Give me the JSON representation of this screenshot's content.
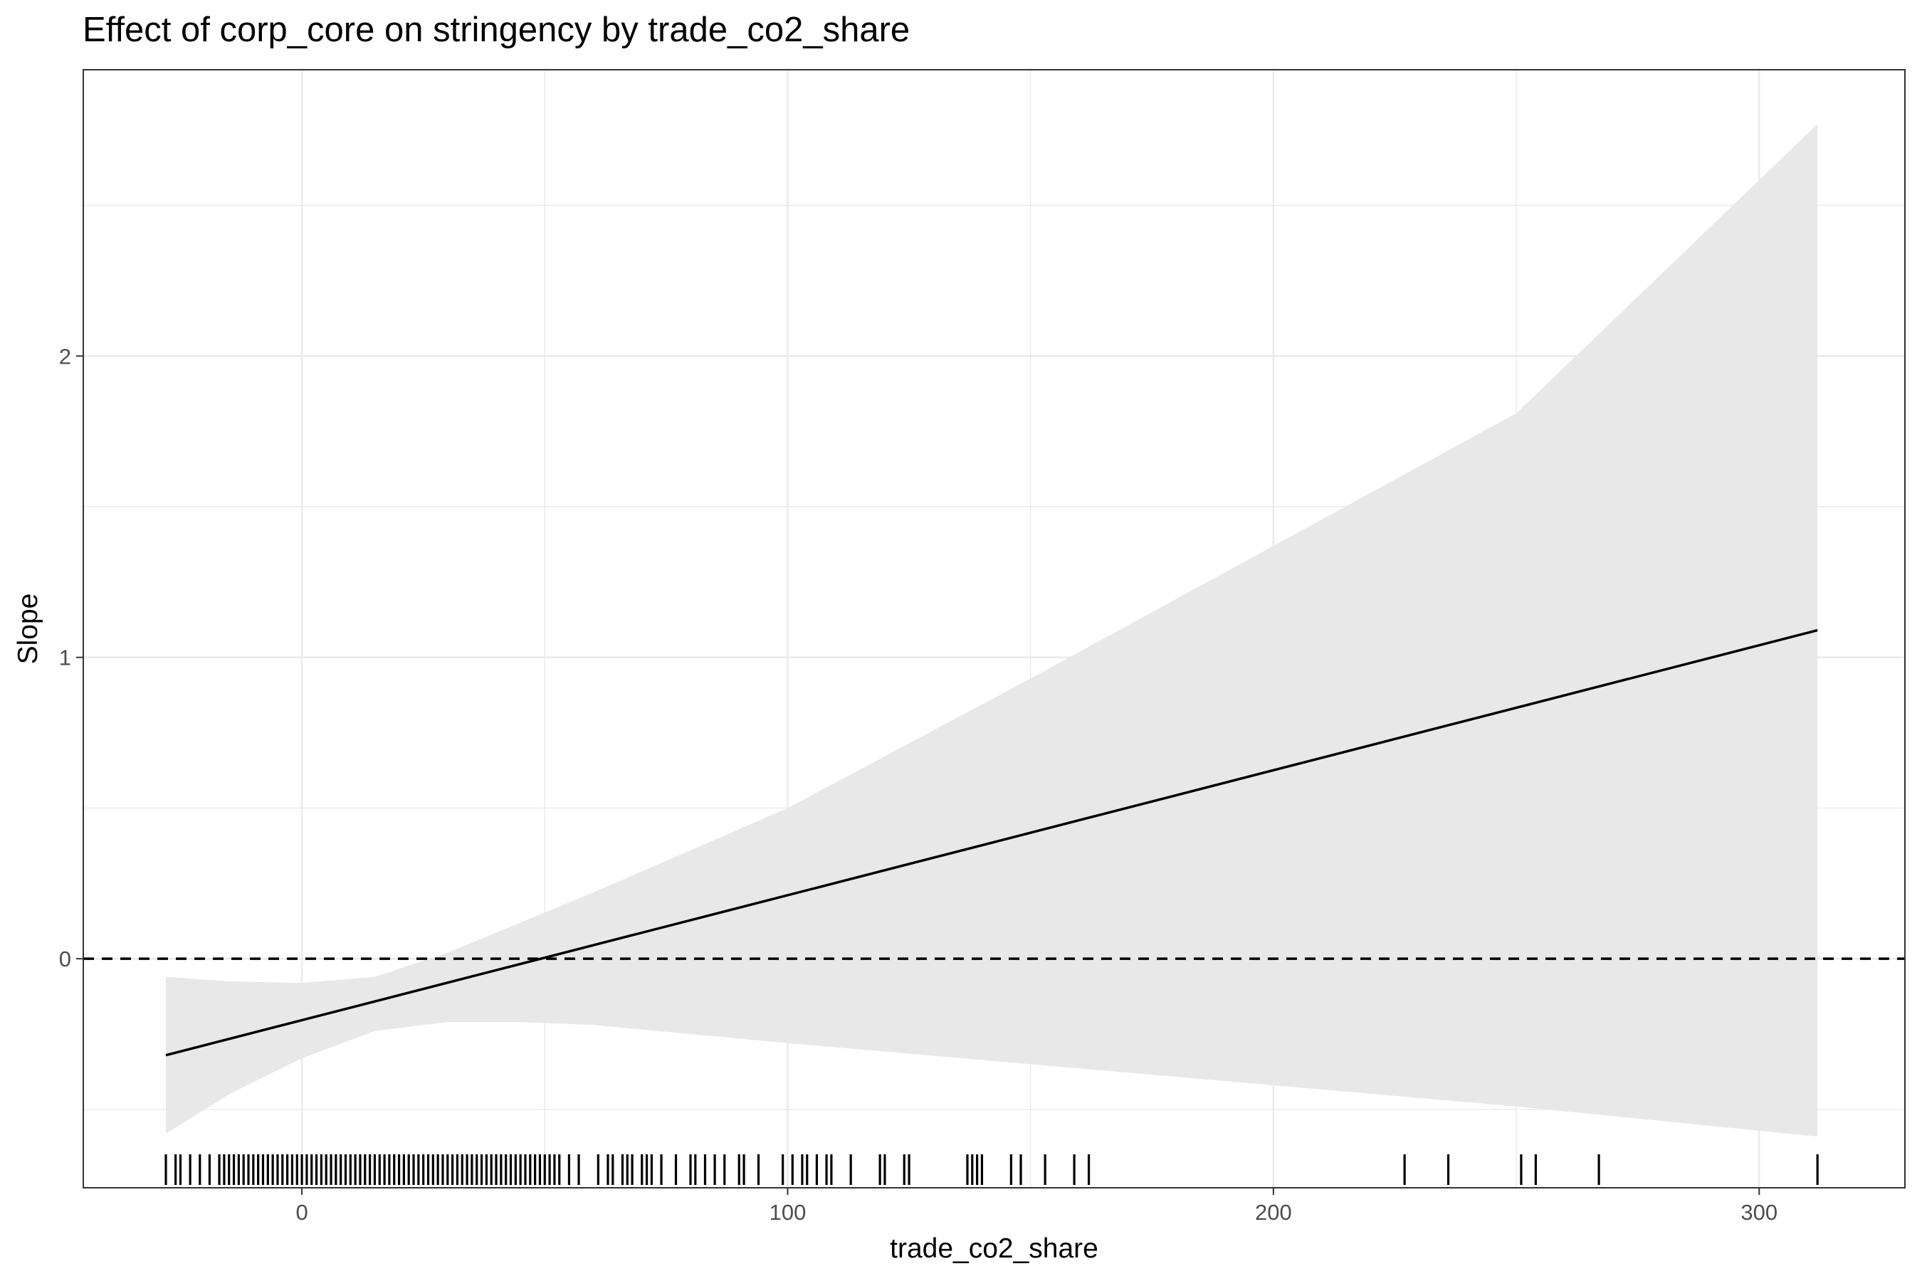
{
  "chart_data": {
    "type": "line",
    "title": "Effect of corp_core on stringency by trade_co2_share",
    "xlabel": "trade_co2_share",
    "ylabel": "Slope",
    "xlim": [
      -45,
      330
    ],
    "ylim": [
      -0.76,
      2.95
    ],
    "x_ticks": [
      0,
      100,
      200,
      300
    ],
    "x_tick_labels": [
      "0",
      "100",
      "200",
      "300"
    ],
    "y_ticks": [
      0,
      1,
      2
    ],
    "y_tick_labels": [
      "0",
      "1",
      "2"
    ],
    "grid": true,
    "reference_line": {
      "y": 0,
      "style": "dashed"
    },
    "series": [
      {
        "type": "line",
        "x": [
          -28,
          312
        ],
        "y": [
          -0.32,
          1.09
        ]
      }
    ],
    "confidence_band": {
      "x": [
        -28,
        -15,
        0,
        15,
        30,
        45,
        60,
        80,
        100,
        150,
        200,
        250,
        312
      ],
      "upper": [
        -0.06,
        -0.075,
        -0.08,
        -0.06,
        0.02,
        0.12,
        0.22,
        0.36,
        0.5,
        0.93,
        1.37,
        1.81,
        2.77
      ],
      "lower": [
        -0.58,
        -0.45,
        -0.33,
        -0.24,
        -0.21,
        -0.21,
        -0.22,
        -0.25,
        -0.28,
        -0.35,
        -0.42,
        -0.49,
        -0.59
      ]
    },
    "rug": [
      -28,
      -26,
      -25,
      -23,
      -21,
      -19,
      -17,
      -16,
      -15,
      -14,
      -13,
      -12,
      -11,
      -10,
      -9,
      -8,
      -7,
      -6,
      -5,
      -4,
      -3,
      -2,
      -1,
      0,
      1,
      2,
      3,
      4,
      5,
      6,
      7,
      8,
      9,
      10,
      11,
      12,
      13,
      14,
      15,
      16,
      17,
      18,
      19,
      20,
      21,
      22,
      23,
      24,
      25,
      26,
      27,
      28,
      29,
      30,
      31,
      32,
      33,
      34,
      35,
      36,
      37,
      38,
      39,
      40,
      41,
      42,
      43,
      44,
      45,
      46,
      47,
      48,
      49,
      50,
      51,
      52,
      53,
      55,
      57,
      61,
      63,
      64,
      66,
      67,
      68,
      70,
      71,
      72,
      74,
      77,
      80,
      81,
      83,
      85,
      87,
      90,
      91,
      94,
      99,
      101,
      103,
      104,
      106,
      108,
      109,
      113,
      119,
      120,
      124,
      125,
      137,
      138,
      139,
      140,
      146,
      148,
      153,
      159,
      162,
      227,
      236,
      251,
      254,
      267,
      312
    ]
  }
}
